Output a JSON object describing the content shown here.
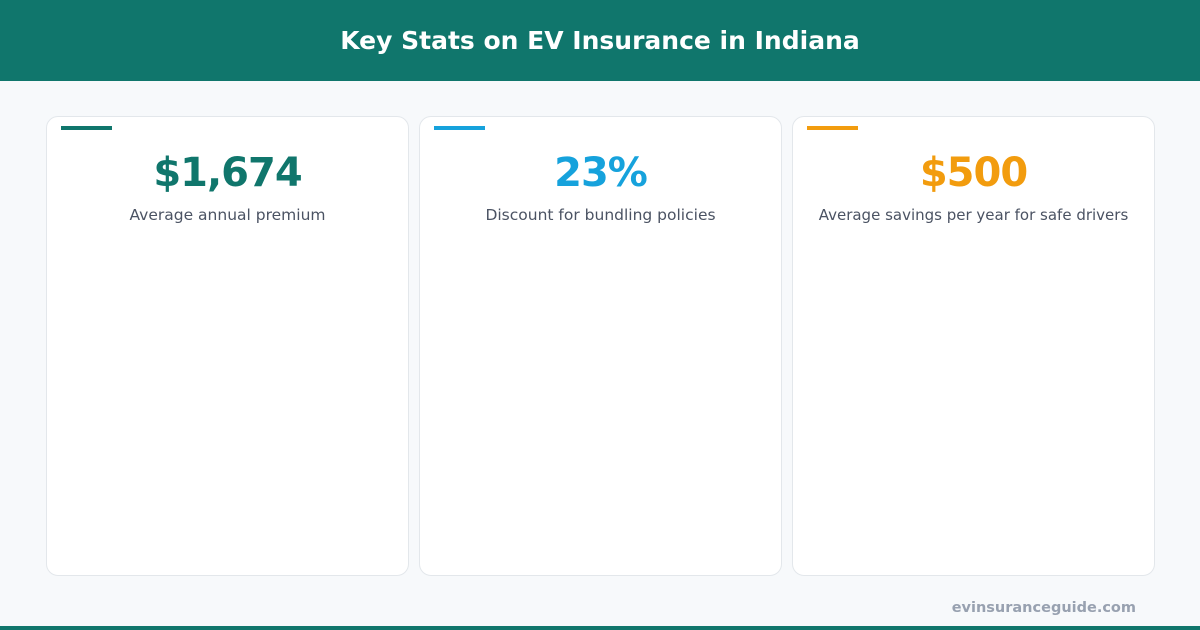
{
  "header": {
    "title": "Key Stats on EV Insurance in Indiana"
  },
  "cards": [
    {
      "value": "$1,674",
      "label": "Average annual premium",
      "color": "#10766c"
    },
    {
      "value": "23%",
      "label": "Discount for bundling policies",
      "color": "#16a2dc"
    },
    {
      "value": "$500",
      "label": "Average savings per year for safe drivers",
      "color": "#f29c0e"
    }
  ],
  "footer": {
    "site": "evinsuranceguide.com"
  },
  "colors": {
    "brand": "#10766c",
    "background": "#f7f9fb"
  }
}
